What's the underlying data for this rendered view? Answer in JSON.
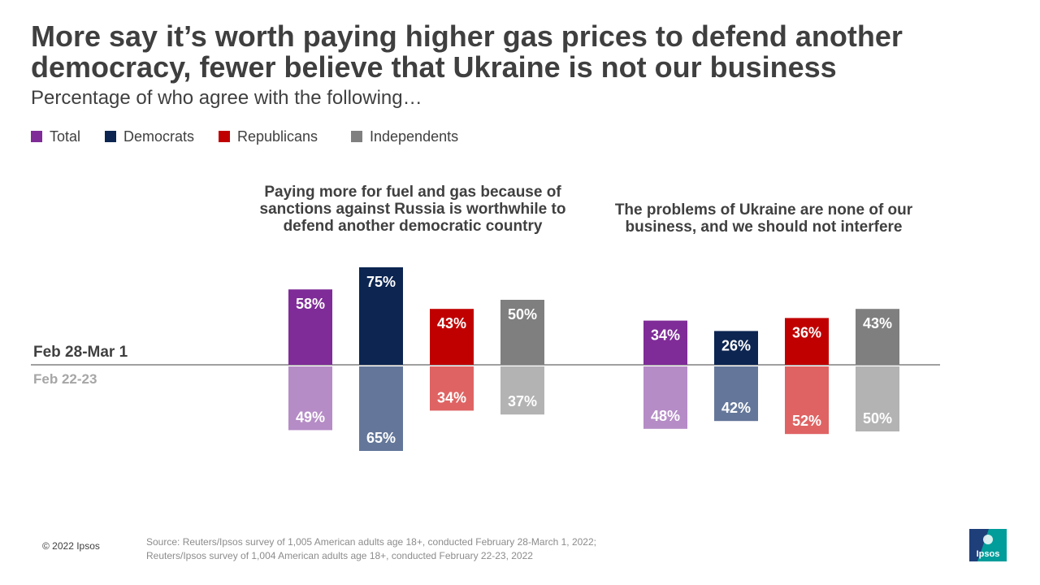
{
  "title": "More say it’s worth paying higher gas prices to defend another democracy, fewer believe that Ukraine is not our business",
  "subtitle": "Percentage of who agree with the following…",
  "legend": [
    {
      "label": "Total",
      "color": "#7f2c98"
    },
    {
      "label": "Democrats",
      "color": "#0c2551"
    },
    {
      "label": "Republicans",
      "color": "#c00000"
    },
    {
      "label": "Independents",
      "color": "#7f7f7f"
    }
  ],
  "chart_data": {
    "type": "bar",
    "periods": {
      "current": "Feb 28-Mar 1",
      "previous": "Feb 22-23"
    },
    "categories": [
      "Total",
      "Democrats",
      "Republicans",
      "Independents"
    ],
    "groups": [
      {
        "statement": "Paying more for fuel and gas because of sanctions against Russia is worthwhile to defend another democratic country",
        "current": [
          58,
          75,
          43,
          50
        ],
        "previous": [
          49,
          65,
          34,
          37
        ]
      },
      {
        "statement": "The problems of Ukraine are none of our business, and we should not interfere",
        "current": [
          34,
          26,
          36,
          43
        ],
        "previous": [
          48,
          42,
          52,
          50
        ]
      }
    ],
    "colors_current": [
      "#7f2c98",
      "#0c2551",
      "#c00000",
      "#7f7f7f"
    ],
    "colors_previous": [
      "#b58cc6",
      "#64779a",
      "#df6363",
      "#b3b3b3"
    ],
    "value_suffix": "%"
  },
  "footer": {
    "copyright": "© 2022 Ipsos",
    "source": "Source: Reuters/Ipsos survey of 1,005 American adults age 18+, conducted February 28-March 1, 2022;\nReuters/Ipsos survey of 1,004 American adults age 18+, conducted February 22-23, 2022",
    "logo_text": "Ipsos",
    "logo_color": "#009d9a"
  }
}
